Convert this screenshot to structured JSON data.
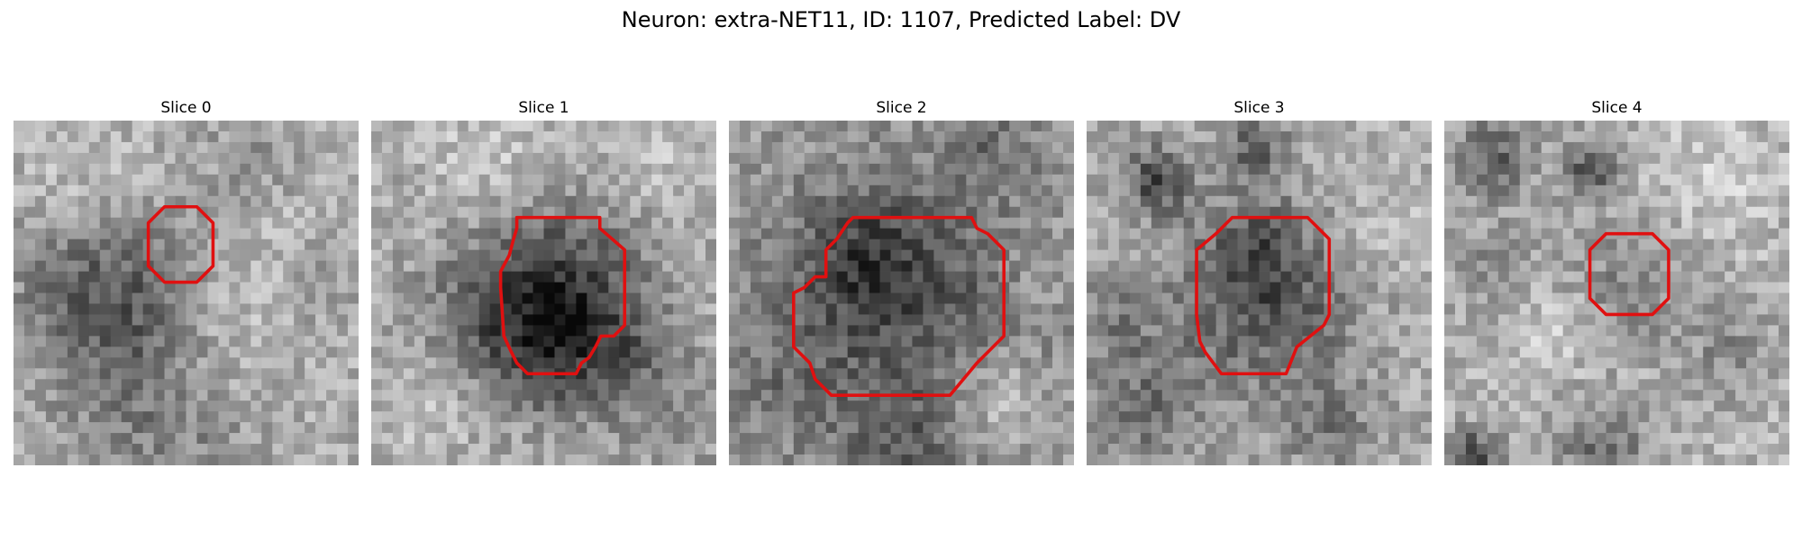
{
  "figure": {
    "title": "Neuron: extra-NET11, ID: 1107, Predicted Label: DV"
  },
  "colors": {
    "contour": "#e01010",
    "background": "#ffffff"
  },
  "panels": [
    {
      "title": "Slice 0"
    },
    {
      "title": "Slice 1"
    },
    {
      "title": "Slice 2"
    },
    {
      "title": "Slice 3"
    },
    {
      "title": "Slice 4"
    }
  ]
}
